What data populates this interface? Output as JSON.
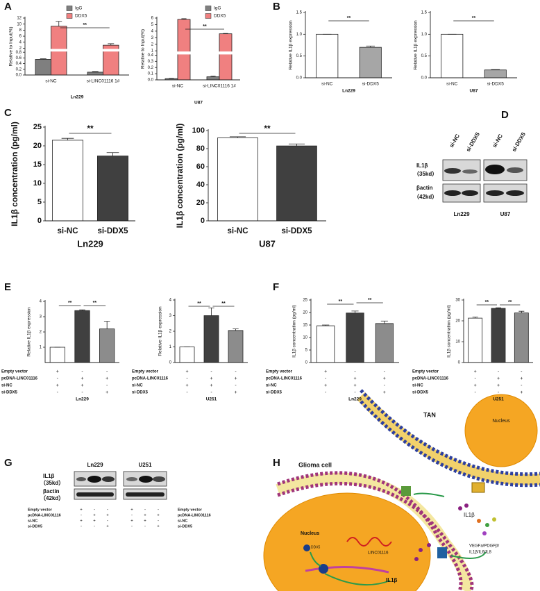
{
  "panel_labels": [
    "A",
    "B",
    "C",
    "D",
    "E",
    "F",
    "G",
    "H"
  ],
  "chart_data": [
    {
      "type": "bar",
      "xlabel": "Ln229",
      "ylabel": "Relative to Input(%)",
      "categories": [
        "si-NC",
        "si-LINC01116 1#"
      ],
      "series": [
        {
          "name": "IgG",
          "color": "#7f7f7f",
          "values": [
            0.55,
            0.1
          ],
          "errors": [
            0.02,
            0.02
          ]
        },
        {
          "name": "DDX5",
          "color": "#f08080",
          "values": [
            9.3,
            3.0
          ],
          "errors": [
            1.6,
            0.5
          ]
        }
      ],
      "ylim": [
        0,
        12
      ],
      "ybreak": [
        0.8,
        2
      ],
      "yticks": [
        {
          "value": 0,
          "label": "0.0"
        },
        0.2,
        0.4,
        0.6,
        0.8,
        2,
        4,
        6,
        8,
        10,
        12
      ],
      "annotations": [
        "**"
      ]
    },
    {
      "type": "bar",
      "xlabel": "U87",
      "ylabel": "Relative to Input(%)",
      "categories": [
        "si-NC",
        "si-LINC01116 1#"
      ],
      "series": [
        {
          "name": "IgG",
          "color": "#7f7f7f",
          "values": [
            0.02,
            0.05
          ],
          "errors": [
            0.005,
            0.01
          ]
        },
        {
          "name": "DDX5",
          "color": "#f08080",
          "values": [
            5.8,
            3.6
          ],
          "errors": [
            0.1,
            0.05
          ]
        }
      ],
      "ylim": [
        0,
        6
      ],
      "ybreak": [
        0.4,
        1
      ],
      "yticks": [
        {
          "value": 0,
          "label": "0.0"
        },
        0.1,
        0.2,
        0.3,
        0.4,
        1,
        2,
        3,
        4,
        5,
        6
      ],
      "annotations": [
        "**"
      ]
    },
    {
      "type": "bar",
      "xlabel": "Ln229",
      "ylabel": "Relative IL1β expression",
      "categories": [
        "si-NC",
        "si-DDX5"
      ],
      "series": [
        {
          "colors": [
            "#ffffff",
            "#a6a6a6"
          ],
          "values": [
            1.0,
            0.7
          ],
          "errors": [
            0,
            0.03
          ]
        }
      ],
      "ylim": [
        0,
        1.5
      ],
      "yticks": [
        {
          "value": 0,
          "label": "0.0"
        },
        0.5,
        {
          "value": 1,
          "label": "1.0"
        },
        1.5
      ],
      "annotations": [
        "**"
      ]
    },
    {
      "type": "bar",
      "xlabel": "U87",
      "ylabel": "Relative IL1β expression",
      "categories": [
        "si-NC",
        "si-DDX5"
      ],
      "series": [
        {
          "colors": [
            "#ffffff",
            "#a6a6a6"
          ],
          "values": [
            1.0,
            0.18
          ],
          "errors": [
            0,
            0.01
          ]
        }
      ],
      "ylim": [
        0,
        1.5
      ],
      "yticks": [
        {
          "value": 0,
          "label": "0.0"
        },
        0.5,
        {
          "value": 1,
          "label": "1.0"
        },
        1.5
      ],
      "annotations": [
        "**"
      ]
    },
    {
      "type": "bar",
      "xlabel": "Ln229",
      "ylabel": "IL1β concentration (pg/ml)",
      "categories": [
        "si-NC",
        "si-DDX5"
      ],
      "series": [
        {
          "colors": [
            "#ffffff",
            "#404040"
          ],
          "values": [
            21.5,
            17.3
          ],
          "errors": [
            0.5,
            0.9
          ]
        }
      ],
      "ylim": [
        0,
        25
      ],
      "yticks": [
        0,
        5,
        10,
        15,
        20,
        25
      ],
      "annotations": [
        "**"
      ]
    },
    {
      "type": "bar",
      "xlabel": "U87",
      "ylabel": "IL1β concentration (pg/ml)",
      "categories": [
        "si-NC",
        "si-DDX5"
      ],
      "series": [
        {
          "colors": [
            "#ffffff",
            "#404040"
          ],
          "values": [
            92,
            83
          ],
          "errors": [
            1.2,
            2.2
          ]
        }
      ],
      "ylim": [
        0,
        100
      ],
      "yticks": [
        0,
        20,
        40,
        60,
        80,
        100
      ],
      "annotations": [
        "**"
      ]
    },
    {
      "type": "bar",
      "xlabel": "Ln229",
      "ylabel": "Relative IL1β expression",
      "series": [
        {
          "colors": [
            "#ffffff",
            "#404040",
            "#8c8c8c"
          ],
          "values": [
            1.0,
            3.4,
            2.2
          ],
          "errors": [
            0,
            0.05,
            0.5
          ]
        }
      ],
      "ylim": [
        0,
        4
      ],
      "yticks": [
        1,
        2,
        3,
        4
      ],
      "annotations": [
        "**",
        "**"
      ],
      "conditions": {
        "labels": [
          "Empty vector",
          "pcDNA-LINC01116",
          "si-NC",
          "si-DDX5"
        ],
        "signs": [
          [
            "+",
            "-",
            "-"
          ],
          [
            "-",
            "+",
            "+"
          ],
          [
            "+",
            "+",
            "-"
          ],
          [
            "-",
            "-",
            "+"
          ]
        ]
      }
    },
    {
      "type": "bar",
      "xlabel": "U251",
      "ylabel": "Relative IL1β expression",
      "series": [
        {
          "colors": [
            "#ffffff",
            "#404040",
            "#8c8c8c"
          ],
          "values": [
            1.0,
            3.0,
            2.05
          ],
          "errors": [
            0,
            0.5,
            0.1
          ]
        }
      ],
      "ylim": [
        0,
        4
      ],
      "yticks": [
        0,
        1,
        2,
        3,
        4
      ],
      "annotations": [
        "**",
        "**"
      ],
      "conditions": {
        "labels": [
          "Empty vector",
          "pcDNA-LINC01116",
          "si-NC",
          "si-DDX5"
        ],
        "signs": [
          [
            "+",
            "-",
            "-"
          ],
          [
            "-",
            "+",
            "+"
          ],
          [
            "+",
            "+",
            "-"
          ],
          [
            "-",
            "-",
            "+"
          ]
        ]
      }
    },
    {
      "type": "bar",
      "xlabel": "Ln229",
      "ylabel": "IL1β concentration (pg/ml)",
      "series": [
        {
          "colors": [
            "#ffffff",
            "#404040",
            "#8c8c8c"
          ],
          "values": [
            14.7,
            19.8,
            15.6
          ],
          "errors": [
            0.3,
            0.8,
            1.0
          ]
        }
      ],
      "ylim": [
        0,
        25
      ],
      "yticks": [
        0,
        5,
        10,
        15,
        20,
        25
      ],
      "annotations": [
        "**",
        "**"
      ],
      "conditions": {
        "labels": [
          "Empty vector",
          "pcDNA-LINC01116",
          "si-NC",
          "si-DDX5"
        ],
        "signs": [
          [
            "+",
            "-",
            "-"
          ],
          [
            "-",
            "+",
            "+"
          ],
          [
            "+",
            "+",
            "-"
          ],
          [
            "-",
            "-",
            "+"
          ]
        ]
      }
    },
    {
      "type": "bar",
      "xlabel": "U251",
      "ylabel": "IL1β concentration (pg/ml)",
      "series": [
        {
          "colors": [
            "#ffffff",
            "#404040",
            "#8c8c8c"
          ],
          "values": [
            21.3,
            26.0,
            23.8
          ],
          "errors": [
            0.5,
            0.3,
            0.8
          ]
        }
      ],
      "ylim": [
        0,
        30
      ],
      "yticks": [
        0,
        10,
        20,
        30
      ],
      "annotations": [
        "**",
        "**"
      ],
      "conditions": {
        "labels": [
          "Empty vector",
          "pcDNA-LINC01116",
          "si-NC",
          "si-DDX5"
        ],
        "signs": [
          [
            "+",
            "-",
            "-"
          ],
          [
            "-",
            "+",
            "+"
          ],
          [
            "+",
            "+",
            "-"
          ],
          [
            "-",
            "-",
            "+"
          ]
        ]
      }
    }
  ],
  "blot_d": {
    "lanes": [
      "si-NC",
      "si-DDX5",
      "si-NC",
      "si-DDX5"
    ],
    "bands": [
      "IL1β",
      "（35kd）",
      "βactin",
      "（42kd）"
    ],
    "cells": [
      "Ln229",
      "U87"
    ]
  },
  "blot_g": {
    "cells": [
      "Ln229",
      "U251"
    ],
    "bands": [
      "IL1β",
      "（35kd）",
      "βactin",
      "（42kd）"
    ],
    "conditions": {
      "labels": [
        "Empty vector",
        "pcDNA-LINC01116",
        "si-NC",
        "si-DDX5"
      ],
      "signs": [
        [
          "+",
          "-",
          "-"
        ],
        [
          "-",
          "+",
          "+"
        ],
        [
          "+",
          "+",
          "-"
        ],
        [
          "-",
          "-",
          "+"
        ]
      ]
    }
  },
  "diagram": {
    "tan": "TAN",
    "tan_nucleus": "Nucleus",
    "glioma": "Glioma cell",
    "il1b_out": "IL1β",
    "factors": [
      "VEGFa/PDGFβ/",
      "IL1β/IL6/IL8"
    ],
    "glioma_nucleus": "Nucleus",
    "ddx5": "DDX5",
    "linc": "LINC01116",
    "il1b_in": "IL1β"
  }
}
